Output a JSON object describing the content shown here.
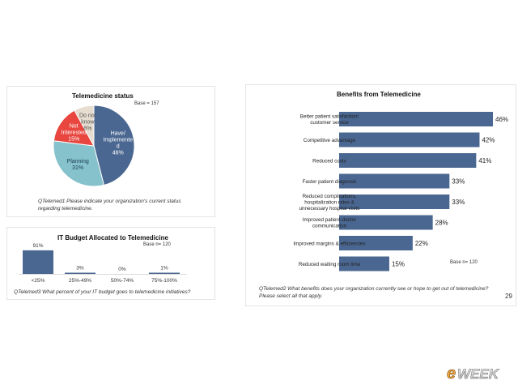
{
  "page_number": "29",
  "logo_text": "eWEEK",
  "colors": {
    "bar": "#4a6791",
    "pie_have": "#4a6791",
    "pie_planning": "#86c2cc",
    "pie_not_interested": "#e8463f",
    "pie_do_not_know": "#e6dccf"
  },
  "chart_data": [
    {
      "type": "pie",
      "title": "Telemedicine status",
      "base_note": "Base = 157",
      "question": "QTelemed1 Please indicate your organization's current status regarding telemedicine.",
      "slices": [
        {
          "label_lines": [
            "Have/",
            "Implemente",
            "d"
          ],
          "value_label": "46%",
          "value": 46
        },
        {
          "label_lines": [
            "Planning"
          ],
          "value_label": "31%",
          "value": 31
        },
        {
          "label_lines": [
            "Not",
            "Interested"
          ],
          "value_label": "15%",
          "value": 15
        },
        {
          "label_lines": [
            "Do not",
            "know"
          ],
          "value_label": "8%",
          "value": 8
        }
      ]
    },
    {
      "type": "bar",
      "title": "IT Budget Allocated to Telemedicine",
      "base_note": "Base n= 120",
      "question": "QTelemed3 What percent of your IT budget goes to telemedicine initiatives?",
      "categories": [
        "<25%",
        "25%-49%",
        "50%-74%",
        "75%-100%"
      ],
      "values": [
        91,
        3,
        0,
        1
      ],
      "value_labels": [
        "91%",
        "3%",
        "0%",
        "1%"
      ],
      "ylim": [
        0,
        100
      ]
    },
    {
      "type": "bar",
      "orientation": "horizontal",
      "title": "Benefits from Telemedicine",
      "base_note": "Base n= 120",
      "question": "QTelemed2 What benefits does your organization currently see or hope to get out of telemedicine? Please select all that apply.",
      "categories": [
        [
          "Better patient satisfaction/",
          "customer service"
        ],
        [
          "Competitive advantage"
        ],
        [
          "Reduced costs"
        ],
        [
          "Faster patient diagnosis"
        ],
        [
          "Reduced complications,",
          "hospitalization rates &",
          "unnecessary hospital visits"
        ],
        [
          "Improved patient-doctor",
          "communication"
        ],
        [
          "Improved margins & efficiencies"
        ],
        [
          "Reduced waiting room time"
        ]
      ],
      "values": [
        46,
        42,
        41,
        33,
        33,
        28,
        22,
        15
      ],
      "value_labels": [
        "46%",
        "42%",
        "41%",
        "33%",
        "33%",
        "28%",
        "22%",
        "15%"
      ],
      "xlim": [
        0,
        50
      ]
    }
  ]
}
